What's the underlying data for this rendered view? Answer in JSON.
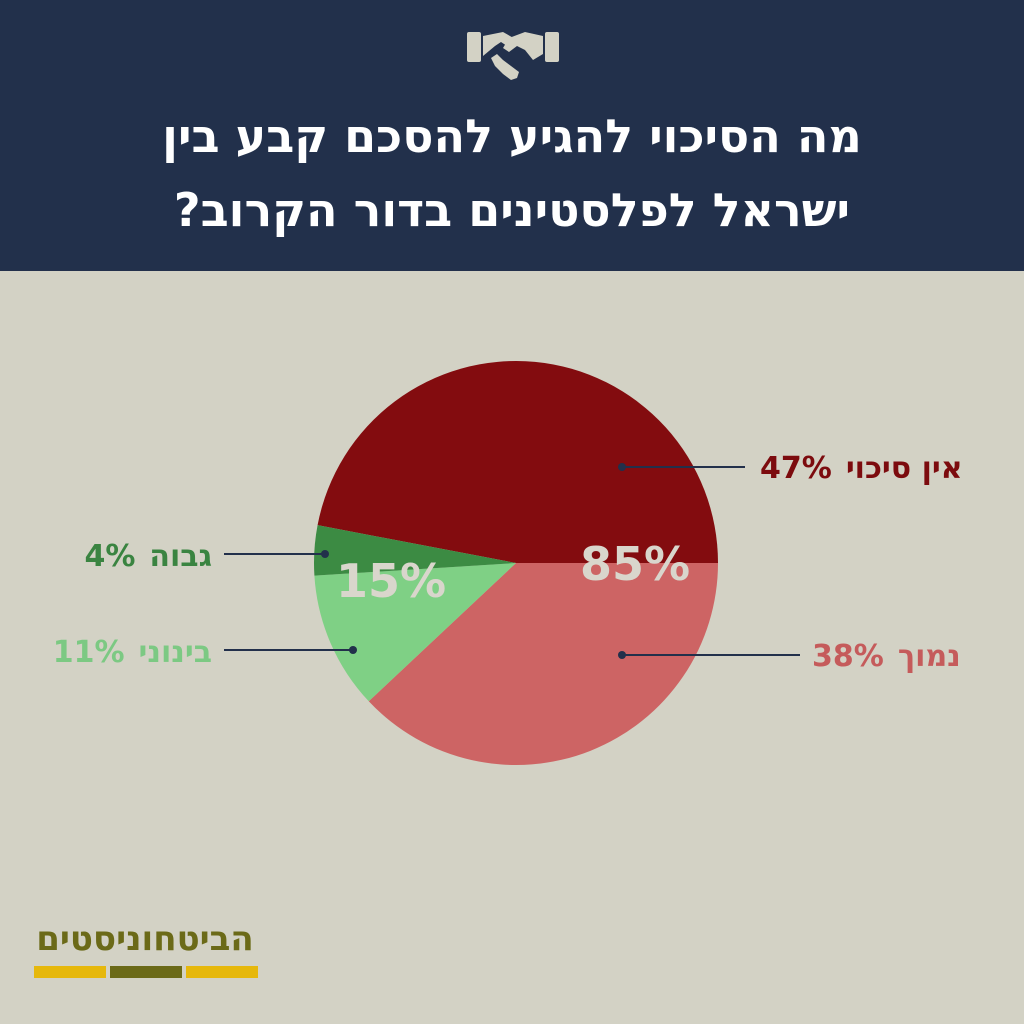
{
  "header": {
    "title_line1": "מה הסיכוי להגיע להסכם קבע בין",
    "title_line2": "ישראל לפלסטינים בדור הקרוב?",
    "icon": "handshake-icon"
  },
  "chart_data": {
    "type": "pie",
    "title": "מה הסיכוי להגיע להסכם קבע בין ישראל לפלסטינים בדור הקרוב?",
    "slices": [
      {
        "label": "אין סיכוי",
        "value": 47,
        "value_text": "47%",
        "color": "#830c0f",
        "label_color": "#7c0b0e"
      },
      {
        "label": "נמוך",
        "value": 38,
        "value_text": "38%",
        "color": "#cd6464",
        "label_color": "#c55b5b"
      },
      {
        "label": "בינוני",
        "value": 11,
        "value_text": "11%",
        "color": "#7fd085",
        "label_color": "#7cc983"
      },
      {
        "label": "גבוה",
        "value": 4,
        "value_text": "4%",
        "color": "#3c8b43",
        "label_color": "#3a8441"
      }
    ],
    "group_labels": [
      {
        "text": "85%",
        "covers": [
          "אין סיכוי",
          "נמוך"
        ]
      },
      {
        "text": "15%",
        "covers": [
          "בינוני",
          "גבוה"
        ]
      }
    ]
  },
  "logo": {
    "text": "הביטחוניסטים",
    "bar_colors": [
      "#e6b80c",
      "#6b6a18",
      "#e6b80c"
    ]
  }
}
